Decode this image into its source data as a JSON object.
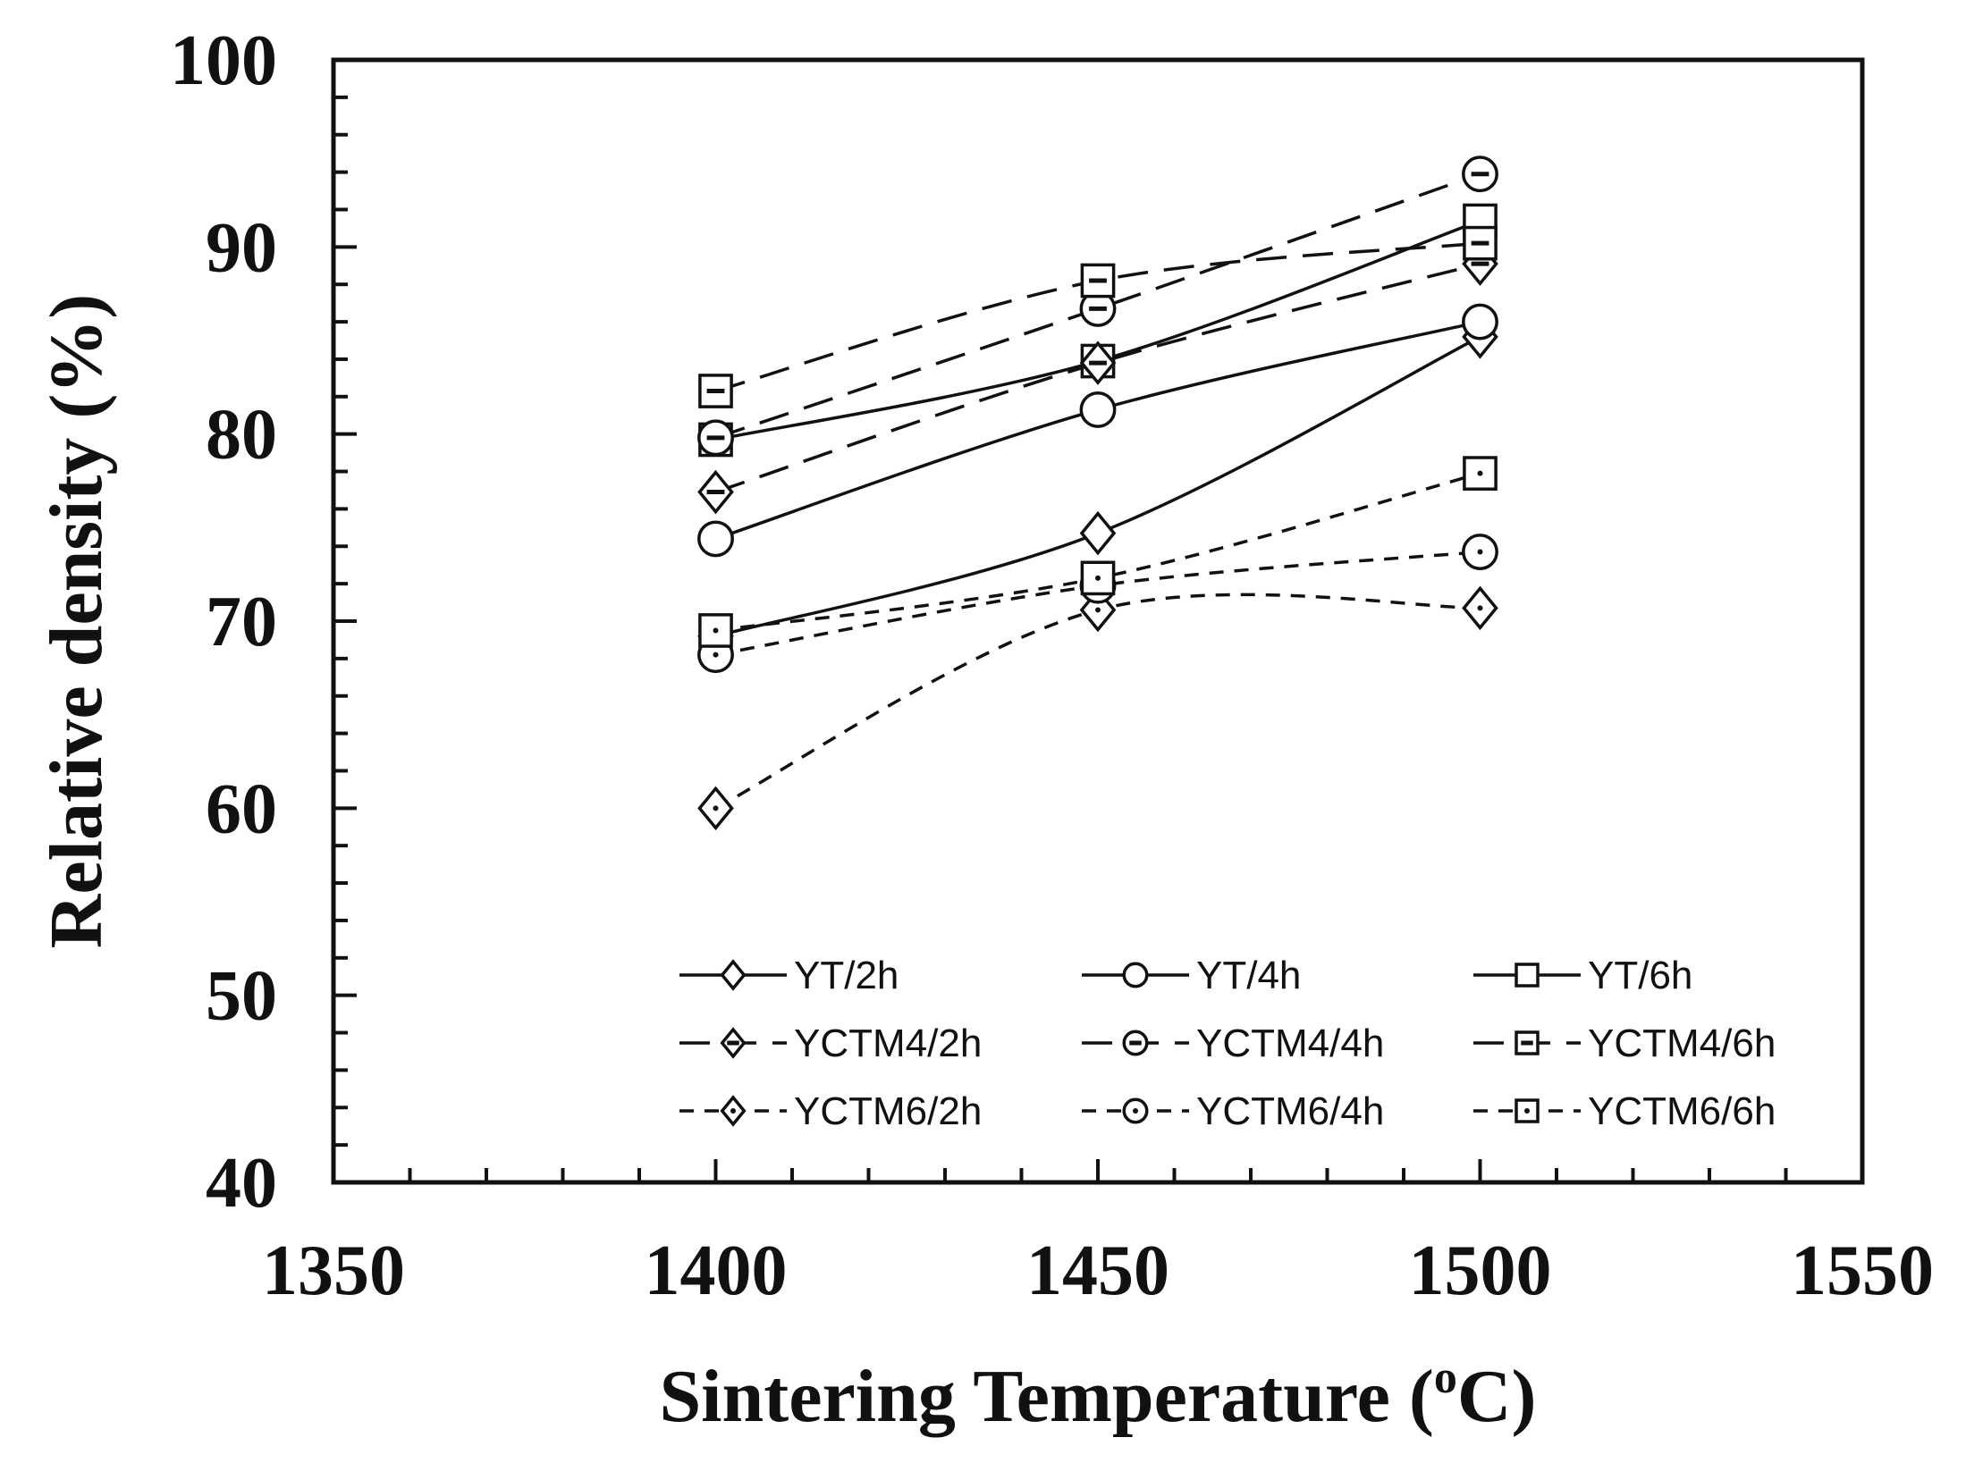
{
  "chart_data": {
    "type": "line",
    "title": "",
    "xlabel": "Sintering Temperature (",
    "xlabel_sup": "o",
    "xlabel_end": "C)",
    "ylabel": "Relative density (%)",
    "xlim": [
      1350,
      1550
    ],
    "ylim": [
      40,
      100
    ],
    "x_ticks": [
      1350,
      1400,
      1450,
      1500,
      1550
    ],
    "x_tick_labels": [
      "1350",
      "1400",
      "1450",
      "1500",
      "1550"
    ],
    "x_minor_step": 10,
    "y_ticks": [
      40,
      50,
      60,
      70,
      80,
      90,
      100
    ],
    "y_tick_labels": [
      "40",
      "50",
      "60",
      "70",
      "80",
      "90",
      "100"
    ],
    "y_minor_step": 2,
    "grid": false,
    "legend_position": "bottom-right",
    "x": [
      1400,
      1450,
      1500
    ],
    "series": [
      {
        "name": "YT/2h",
        "values": [
          69.2,
          74.7,
          85.2
        ],
        "marker": "diamond",
        "line": "solid",
        "fill": "none"
      },
      {
        "name": "YT/4h",
        "values": [
          74.4,
          81.3,
          86.0
        ],
        "marker": "circle",
        "line": "solid",
        "fill": "none"
      },
      {
        "name": "YT/6h",
        "values": [
          79.7,
          83.9,
          91.4
        ],
        "marker": "square",
        "line": "solid",
        "fill": "none"
      },
      {
        "name": "YCTM4/2h",
        "values": [
          76.9,
          83.8,
          89.1
        ],
        "marker": "diamond",
        "line": "long-dash",
        "fill": "bar"
      },
      {
        "name": "YCTM4/4h",
        "values": [
          79.8,
          86.7,
          93.9
        ],
        "marker": "circle",
        "line": "long-dash",
        "fill": "bar"
      },
      {
        "name": "YCTM4/6h",
        "values": [
          82.3,
          88.2,
          90.2
        ],
        "marker": "square",
        "line": "long-dash",
        "fill": "bar"
      },
      {
        "name": "YCTM6/2h",
        "values": [
          60.0,
          70.6,
          70.7
        ],
        "marker": "diamond",
        "line": "short-dash",
        "fill": "dot"
      },
      {
        "name": "YCTM6/4h",
        "values": [
          68.2,
          71.9,
          73.7
        ],
        "marker": "circle",
        "line": "short-dash",
        "fill": "dot"
      },
      {
        "name": "YCTM6/6h",
        "values": [
          69.5,
          72.3,
          77.9
        ],
        "marker": "square",
        "line": "short-dash",
        "fill": "dot"
      }
    ]
  }
}
